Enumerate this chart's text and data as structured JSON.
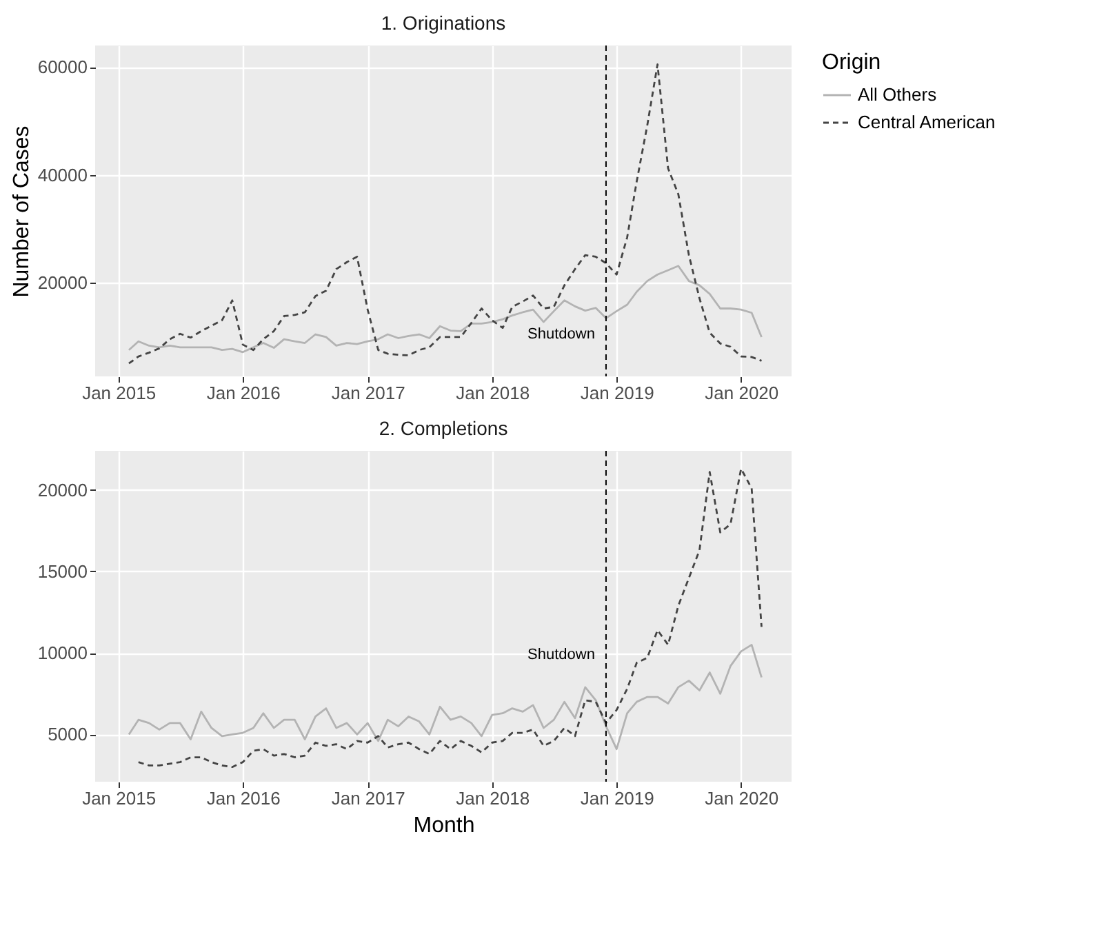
{
  "chart_data": [
    {
      "type": "line",
      "title": "1. Originations",
      "ylabel": "Number of Cases",
      "legend_title": "Origin",
      "legend": "right",
      "grid": true,
      "x": [
        "2015-02",
        "2015-03",
        "2015-04",
        "2015-05",
        "2015-06",
        "2015-07",
        "2015-08",
        "2015-09",
        "2015-10",
        "2015-11",
        "2015-12",
        "2016-01",
        "2016-02",
        "2016-03",
        "2016-04",
        "2016-05",
        "2016-06",
        "2016-07",
        "2016-08",
        "2016-09",
        "2016-10",
        "2016-11",
        "2016-12",
        "2017-01",
        "2017-02",
        "2017-03",
        "2017-04",
        "2017-05",
        "2017-06",
        "2017-07",
        "2017-08",
        "2017-09",
        "2017-10",
        "2017-11",
        "2017-12",
        "2018-01",
        "2018-02",
        "2018-03",
        "2018-04",
        "2018-05",
        "2018-06",
        "2018-07",
        "2018-08",
        "2018-09",
        "2018-10",
        "2018-11",
        "2018-12",
        "2019-01",
        "2019-02",
        "2019-03",
        "2019-04",
        "2019-05",
        "2019-06",
        "2019-07",
        "2019-08",
        "2019-09",
        "2019-10",
        "2019-11",
        "2019-12",
        "2020-01",
        "2020-02",
        "2020-03"
      ],
      "series": [
        {
          "name": "All Others",
          "color": "#b3b3b3",
          "line_style": "solid",
          "values": [
            7500,
            9100,
            8300,
            8000,
            8300,
            8000,
            8000,
            8000,
            8000,
            7500,
            7700,
            7100,
            8000,
            8800,
            7900,
            9500,
            9100,
            8800,
            10400,
            9900,
            8300,
            8800,
            8600,
            9100,
            9500,
            10400,
            9700,
            10100,
            10400,
            9700,
            11900,
            11100,
            11000,
            12400,
            12400,
            12700,
            13200,
            13900,
            14500,
            15000,
            12700,
            14700,
            16700,
            15600,
            14800,
            15300,
            13400,
            14700,
            15900,
            18300,
            20300,
            21500,
            22300,
            23100,
            20300,
            19500,
            17900,
            15200,
            15200,
            15000,
            14400,
            9900
          ]
        },
        {
          "name": "Central American",
          "color": "#444444",
          "line_style": "dashed",
          "values": [
            5000,
            6300,
            7000,
            7800,
            9500,
            10500,
            9800,
            11000,
            12000,
            13000,
            16700,
            8500,
            7500,
            9500,
            11000,
            13800,
            14000,
            14500,
            17500,
            18500,
            22500,
            23800,
            24800,
            15000,
            7500,
            6800,
            6600,
            6500,
            7500,
            8000,
            9900,
            9900,
            9900,
            12500,
            15200,
            13000,
            11600,
            15500,
            16500,
            17600,
            15200,
            15500,
            19500,
            22500,
            25100,
            24800,
            23600,
            21500,
            28400,
            38800,
            49200,
            60500,
            41200,
            36400,
            25100,
            17100,
            10700,
            8700,
            8100,
            6300,
            6200,
            5500
          ]
        }
      ],
      "xlim": [
        "2014-10-25",
        "2020-05-28"
      ],
      "xticks": [
        {
          "value": "2015-01",
          "label": "Jan 2015"
        },
        {
          "value": "2016-01",
          "label": "Jan 2016"
        },
        {
          "value": "2017-01",
          "label": "Jan 2017"
        },
        {
          "value": "2018-01",
          "label": "Jan 2018"
        },
        {
          "value": "2019-01",
          "label": "Jan 2019"
        },
        {
          "value": "2020-01",
          "label": "Jan 2020"
        }
      ],
      "ylim": [
        2600,
        64000
      ],
      "yticks": [
        20000,
        40000,
        60000
      ],
      "ref_lines": [
        {
          "axis": "x",
          "value": "2018-12",
          "color": "#000000",
          "line_style": "dashed"
        }
      ],
      "annotations": [
        {
          "text": "Shutdown",
          "x": "2018-12",
          "y": 10400
        }
      ]
    },
    {
      "type": "line",
      "title": "2. Completions",
      "xlabel": "Month",
      "grid": true,
      "x": [
        "2015-02",
        "2015-03",
        "2015-04",
        "2015-05",
        "2015-06",
        "2015-07",
        "2015-08",
        "2015-09",
        "2015-10",
        "2015-11",
        "2015-12",
        "2016-01",
        "2016-02",
        "2016-03",
        "2016-04",
        "2016-05",
        "2016-06",
        "2016-07",
        "2016-08",
        "2016-09",
        "2016-10",
        "2016-11",
        "2016-12",
        "2017-01",
        "2017-02",
        "2017-03",
        "2017-04",
        "2017-05",
        "2017-06",
        "2017-07",
        "2017-08",
        "2017-09",
        "2017-10",
        "2017-11",
        "2017-12",
        "2018-01",
        "2018-02",
        "2018-03",
        "2018-04",
        "2018-05",
        "2018-06",
        "2018-07",
        "2018-08",
        "2018-09",
        "2018-10",
        "2018-11",
        "2018-12",
        "2019-01",
        "2019-02",
        "2019-03",
        "2019-04",
        "2019-05",
        "2019-06",
        "2019-07",
        "2019-08",
        "2019-09",
        "2019-10",
        "2019-11",
        "2019-12",
        "2020-01",
        "2020-02",
        "2020-03"
      ],
      "series": [
        {
          "color": "#b3b3b3",
          "line_style": "solid",
          "values": [
            5000,
            5900,
            5700,
            5300,
            5700,
            5700,
            4700,
            6400,
            5400,
            4900,
            5000,
            5100,
            5400,
            6300,
            5400,
            5900,
            5900,
            4700,
            6100,
            6600,
            5400,
            5700,
            5000,
            5700,
            4600,
            5900,
            5500,
            6100,
            5800,
            5000,
            6700,
            5900,
            6100,
            5700,
            4900,
            6200,
            6300,
            6600,
            6400,
            6800,
            5400,
            5900,
            7000,
            6000,
            7900,
            7100,
            5500,
            4100,
            6300,
            7000,
            7300,
            7300,
            6900,
            7900,
            8300,
            7700,
            8800,
            7500,
            9200,
            10100,
            10500,
            8500
          ]
        },
        {
          "color": "#444444",
          "line_style": "dashed",
          "values": [
            null,
            3300,
            3100,
            3100,
            3200,
            3300,
            3600,
            3600,
            3300,
            3100,
            3000,
            3300,
            4000,
            4100,
            3700,
            3800,
            3600,
            3700,
            4500,
            4300,
            4400,
            4100,
            4600,
            4500,
            4900,
            4200,
            4400,
            4500,
            4100,
            3800,
            4600,
            4100,
            4600,
            4300,
            3900,
            4500,
            4600,
            5100,
            5100,
            5300,
            4300,
            4600,
            5400,
            4900,
            7100,
            7000,
            5700,
            6500,
            7800,
            9400,
            9700,
            11400,
            10500,
            12900,
            14600,
            16300,
            21100,
            17400,
            17900,
            21300,
            20100,
            11600
          ]
        }
      ],
      "xlim": [
        "2014-10-25",
        "2020-05-28"
      ],
      "xticks": [
        {
          "value": "2015-01",
          "label": "Jan 2015"
        },
        {
          "value": "2016-01",
          "label": "Jan 2016"
        },
        {
          "value": "2017-01",
          "label": "Jan 2017"
        },
        {
          "value": "2018-01",
          "label": "Jan 2018"
        },
        {
          "value": "2019-01",
          "label": "Jan 2019"
        },
        {
          "value": "2020-01",
          "label": "Jan 2020"
        }
      ],
      "ylim": [
        2100,
        22400
      ],
      "yticks": [
        5000,
        10000,
        15000,
        20000
      ],
      "ref_lines": [
        {
          "axis": "x",
          "value": "2018-12",
          "color": "#000000",
          "line_style": "dashed"
        }
      ],
      "annotations": [
        {
          "text": "Shutdown",
          "x": "2018-12",
          "y": 9900
        }
      ]
    }
  ]
}
